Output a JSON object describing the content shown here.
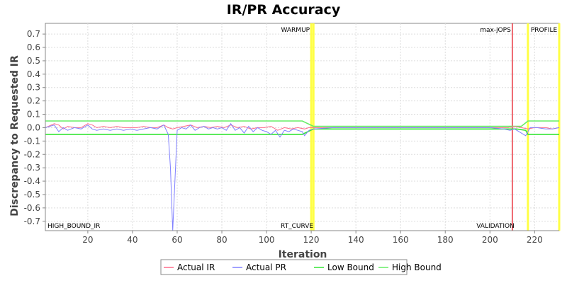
{
  "chart_data": {
    "type": "line",
    "title": "IR/PR Accuracy",
    "xlabel": "Iteration",
    "ylabel": "Discrepancy to Requested IR",
    "xlim": [
      1,
      231
    ],
    "ylim": [
      -0.77,
      0.78
    ],
    "x_ticks": [
      20,
      40,
      60,
      80,
      100,
      120,
      140,
      160,
      180,
      200,
      220
    ],
    "y_ticks": [
      0.7,
      0.6,
      0.5,
      0.4,
      0.3,
      0.2,
      0.1,
      0.0,
      -0.1,
      -0.2,
      -0.3,
      -0.4,
      -0.5,
      -0.6,
      -0.7
    ],
    "legend_position": "bottom",
    "series": [
      {
        "name": "Actual IR",
        "color": "#ff6b8a",
        "points": [
          [
            1,
            0.0
          ],
          [
            5,
            0.03
          ],
          [
            7,
            0.02
          ],
          [
            9,
            -0.01
          ],
          [
            11,
            0.01
          ],
          [
            14,
            0.0
          ],
          [
            17,
            0.0
          ],
          [
            20,
            0.03
          ],
          [
            22,
            0.02
          ],
          [
            24,
            0.0
          ],
          [
            27,
            0.01
          ],
          [
            30,
            0.0
          ],
          [
            33,
            0.01
          ],
          [
            36,
            0.0
          ],
          [
            39,
            0.0
          ],
          [
            42,
            0.0
          ],
          [
            45,
            0.01
          ],
          [
            48,
            0.0
          ],
          [
            51,
            0.0
          ],
          [
            54,
            0.02
          ],
          [
            56,
            0.0
          ],
          [
            58,
            -0.01
          ],
          [
            60,
            0.0
          ],
          [
            63,
            0.01
          ],
          [
            66,
            0.02
          ],
          [
            69,
            0.0
          ],
          [
            72,
            0.01
          ],
          [
            75,
            0.0
          ],
          [
            78,
            0.01
          ],
          [
            81,
            0.0
          ],
          [
            84,
            0.02
          ],
          [
            87,
            0.0
          ],
          [
            90,
            0.01
          ],
          [
            93,
            -0.01
          ],
          [
            96,
            0.0
          ],
          [
            99,
            0.0
          ],
          [
            102,
            0.01
          ],
          [
            105,
            -0.02
          ],
          [
            108,
            0.0
          ],
          [
            111,
            -0.01
          ],
          [
            114,
            0.0
          ],
          [
            117,
            -0.01
          ],
          [
            119,
            0.0
          ],
          [
            121,
            0.0
          ],
          [
            130,
            0.0
          ],
          [
            140,
            0.0
          ],
          [
            150,
            0.0
          ],
          [
            160,
            0.0
          ],
          [
            170,
            0.0
          ],
          [
            180,
            0.0
          ],
          [
            190,
            0.0
          ],
          [
            200,
            0.0
          ],
          [
            208,
            0.0
          ],
          [
            211,
            0.01
          ],
          [
            214,
            0.0
          ],
          [
            217,
            -0.01
          ],
          [
            220,
            0.0
          ],
          [
            225,
            0.0
          ],
          [
            228,
            -0.01
          ],
          [
            231,
            0.0
          ]
        ]
      },
      {
        "name": "Actual PR",
        "color": "#8080ff",
        "points": [
          [
            1,
            0.0
          ],
          [
            5,
            0.02
          ],
          [
            7,
            -0.03
          ],
          [
            9,
            0.0
          ],
          [
            11,
            -0.02
          ],
          [
            14,
            0.0
          ],
          [
            17,
            -0.01
          ],
          [
            20,
            0.02
          ],
          [
            22,
            -0.01
          ],
          [
            24,
            -0.02
          ],
          [
            27,
            -0.01
          ],
          [
            30,
            -0.02
          ],
          [
            33,
            -0.01
          ],
          [
            36,
            -0.02
          ],
          [
            39,
            -0.01
          ],
          [
            42,
            -0.02
          ],
          [
            45,
            -0.01
          ],
          [
            48,
            0.0
          ],
          [
            51,
            -0.01
          ],
          [
            54,
            0.02
          ],
          [
            56,
            -0.05
          ],
          [
            57,
            -0.3
          ],
          [
            58,
            -0.77
          ],
          [
            59,
            -0.4
          ],
          [
            60,
            -0.02
          ],
          [
            62,
            0.0
          ],
          [
            64,
            -0.01
          ],
          [
            66,
            0.02
          ],
          [
            68,
            -0.02
          ],
          [
            70,
            0.0
          ],
          [
            72,
            0.01
          ],
          [
            74,
            -0.01
          ],
          [
            76,
            0.0
          ],
          [
            78,
            -0.01
          ],
          [
            80,
            0.0
          ],
          [
            82,
            -0.02
          ],
          [
            84,
            0.03
          ],
          [
            86,
            -0.02
          ],
          [
            88,
            0.0
          ],
          [
            90,
            -0.04
          ],
          [
            92,
            0.01
          ],
          [
            94,
            -0.03
          ],
          [
            96,
            0.0
          ],
          [
            98,
            -0.02
          ],
          [
            100,
            -0.03
          ],
          [
            102,
            -0.05
          ],
          [
            104,
            -0.02
          ],
          [
            106,
            -0.07
          ],
          [
            108,
            -0.02
          ],
          [
            110,
            -0.03
          ],
          [
            112,
            -0.01
          ],
          [
            114,
            -0.02
          ],
          [
            116,
            -0.03
          ],
          [
            117,
            -0.06
          ],
          [
            119,
            -0.02
          ],
          [
            121,
            -0.01
          ],
          [
            130,
            0.0
          ],
          [
            140,
            0.0
          ],
          [
            150,
            0.0
          ],
          [
            160,
            0.0
          ],
          [
            170,
            0.0
          ],
          [
            180,
            0.0
          ],
          [
            190,
            0.0
          ],
          [
            200,
            0.0
          ],
          [
            206,
            -0.01
          ],
          [
            209,
            -0.02
          ],
          [
            211,
            -0.01
          ],
          [
            213,
            -0.03
          ],
          [
            215,
            -0.05
          ],
          [
            216,
            -0.06
          ],
          [
            218,
            0.0
          ],
          [
            221,
            0.0
          ],
          [
            225,
            -0.01
          ],
          [
            228,
            -0.01
          ],
          [
            231,
            0.0
          ]
        ]
      },
      {
        "name": "Low Bound",
        "color": "#33e633",
        "points": [
          [
            1,
            -0.05
          ],
          [
            116,
            -0.05
          ],
          [
            121,
            -0.01
          ],
          [
            208,
            -0.01
          ],
          [
            212,
            -0.01
          ],
          [
            216,
            -0.02
          ],
          [
            217,
            -0.05
          ],
          [
            231,
            -0.05
          ]
        ]
      },
      {
        "name": "High Bound",
        "color": "#66ee66",
        "points": [
          [
            1,
            0.05
          ],
          [
            116,
            0.05
          ],
          [
            121,
            0.01
          ],
          [
            208,
            0.01
          ],
          [
            214,
            0.01
          ],
          [
            217,
            0.05
          ],
          [
            231,
            0.05
          ]
        ]
      }
    ],
    "markers": [
      {
        "x": 120,
        "top_label": "WARMUP",
        "bottom_label": "RT_CURVE",
        "color": "#ffff44"
      },
      {
        "x": 121,
        "top_label": "",
        "bottom_label": "",
        "color": "#ffff44"
      },
      {
        "x": 210,
        "top_label": "max-jOPS",
        "bottom_label": "VALIDATION",
        "color": "#e8303a"
      },
      {
        "x": 217,
        "top_label": "PROFILE",
        "bottom_label": "",
        "color": "#ffff44"
      },
      {
        "x": 231,
        "top_label": "",
        "bottom_label": "",
        "color": "#ffff44"
      }
    ],
    "corner_label": "HIGH_BOUND_IR"
  }
}
